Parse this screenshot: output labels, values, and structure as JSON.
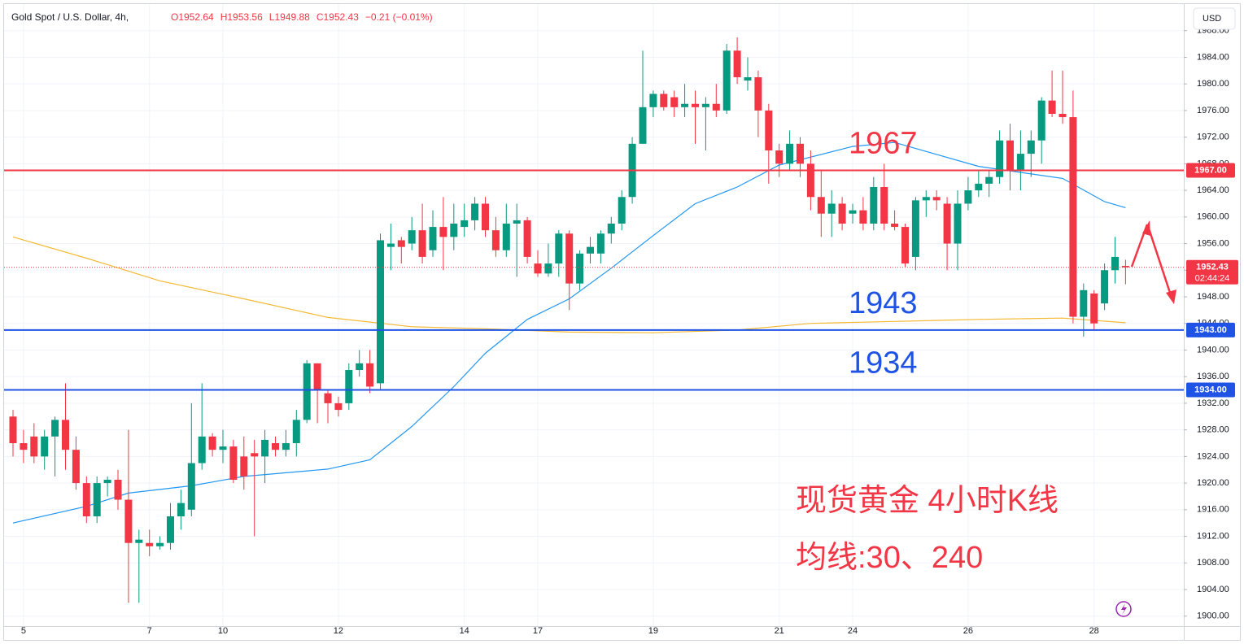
{
  "chart_data": {
    "type": "candlestick",
    "title": "Gold Spot / U.S. Dollar, 4h,",
    "ohlc_header": [
      "O1952.64",
      "H1953.56",
      "L1949.88",
      "C1952.43",
      "−0.21 (−0.01%)"
    ],
    "currency": "USD",
    "up_color": "#089981",
    "down_color": "#f23645",
    "categories": [
      null,
      "5",
      null,
      null,
      null,
      null,
      null,
      null,
      null,
      null,
      null,
      null,
      null,
      "7",
      null,
      null,
      null,
      null,
      null,
      null,
      "10",
      null,
      null,
      null,
      null,
      null,
      null,
      null,
      null,
      null,
      null,
      "12",
      null,
      null,
      null,
      null,
      null,
      null,
      null,
      null,
      null,
      null,
      null,
      "14",
      null,
      null,
      null,
      null,
      null,
      null,
      "17",
      null,
      null,
      null,
      null,
      null,
      null,
      null,
      null,
      null,
      null,
      "19",
      null,
      null,
      null,
      null,
      null,
      null,
      null,
      null,
      null,
      null,
      null,
      "21",
      null,
      null,
      null,
      null,
      null,
      null,
      "24",
      null,
      null,
      null,
      null,
      null,
      null,
      null,
      null,
      null,
      null,
      "26",
      null,
      null,
      null,
      null,
      null,
      null,
      null,
      null,
      null,
      null,
      null,
      "28",
      null,
      null,
      null
    ],
    "open": [
      1930,
      1926,
      1927,
      1924,
      1927,
      1929.5,
      1925,
      1920,
      1915,
      1920,
      1920.5,
      1917.5,
      1911,
      1911,
      1910.5,
      1911,
      1915,
      1916,
      1923,
      1927,
      1925,
      1925.5,
      1924,
      1924.5,
      1924,
      1926,
      1925,
      1926,
      1929.5,
      1938,
      1933.5,
      1932,
      1932,
      1937,
      1938,
      1935,
      1955.5,
      1956.5,
      1956,
      1958,
      1955,
      1958.5,
      1957,
      1958.5,
      1959.5,
      1962,
      1958,
      1955,
      1959,
      1959.5,
      1953,
      1951.5,
      1953,
      1957.5,
      1950,
      1954.5,
      1954.5,
      1957.5,
      1959,
      1963,
      1971,
      1976.5,
      1978.5,
      1978,
      1976.5,
      1977,
      1976.5,
      1977,
      1976,
      1985,
      1980.5,
      1981,
      1976,
      1970,
      1968,
      1971,
      1968,
      1963,
      1960.5,
      1962,
      1960.5,
      1961,
      1959,
      1964.5,
      1959,
      1958.5,
      1954,
      1962.5,
      1963,
      1962,
      1956,
      1962,
      1964,
      1965,
      1966,
      1971.5,
      1967,
      1969.5,
      1971.5,
      1977.5,
      1975.5,
      1975,
      1945,
      1948.5,
      1947,
      1952,
      1952.64
    ],
    "high": [
      1931,
      1928,
      1929,
      1928,
      1930,
      1935,
      1927,
      1921,
      1921,
      1921,
      1922,
      1928,
      1913,
      1913,
      1912,
      1917,
      1919,
      1932,
      1935,
      1927.5,
      1928,
      1926.5,
      1927,
      1926.5,
      1928,
      1927,
      1928,
      1931,
      1938.5,
      1938,
      1934,
      1933,
      1938,
      1940,
      1940,
      1957.5,
      1959,
      1957,
      1960,
      1962,
      1961,
      1963,
      1962,
      1962,
      1963,
      1963,
      1960,
      1962,
      1962,
      1960,
      1955,
      1956,
      1958,
      1958,
      1955,
      1957,
      1958,
      1960,
      1964,
      1972,
      1985,
      1979,
      1979,
      1979,
      1980,
      1979,
      1978,
      1980,
      1986,
      1987,
      1984,
      1982,
      1977,
      1971,
      1973,
      1972,
      1970,
      1967,
      1964,
      1963,
      1962,
      1963,
      1966,
      1968,
      1961,
      1959,
      1963,
      1964,
      1964,
      1963,
      1964,
      1966,
      1967,
      1967,
      1973,
      1974,
      1973,
      1973,
      1978,
      1982,
      1982,
      1979,
      1950,
      1949,
      1953,
      1957,
      1953.56
    ],
    "low": [
      1924,
      1923,
      1923,
      1922,
      1921,
      1922,
      1919,
      1914,
      1914,
      1918,
      1916,
      1902,
      1902,
      1909,
      1910,
      1910,
      1913,
      1915,
      1922,
      1924,
      1923,
      1920,
      1919,
      1912,
      1920,
      1924,
      1924,
      1924,
      1929,
      1929,
      1929,
      1930,
      1931,
      1936,
      1933.5,
      1934,
      1952,
      1953,
      1955,
      1953,
      1954,
      1952,
      1955,
      1957,
      1958,
      1957,
      1954,
      1954,
      1951,
      1953,
      1951,
      1951,
      1951,
      1946,
      1949,
      1953,
      1953,
      1956,
      1958,
      1962,
      1971,
      1975,
      1976,
      1975,
      1975,
      1971,
      1970,
      1975,
      1975.5,
      1980,
      1979,
      1972,
      1965,
      1966,
      1967,
      1966,
      1961,
      1957,
      1957,
      1958,
      1959,
      1958,
      1958,
      1958,
      1958,
      1952.5,
      1952,
      1960,
      1961,
      1952,
      1952,
      1961,
      1963,
      1963,
      1965,
      1964,
      1964,
      1966,
      1968,
      1975,
      1974,
      1944,
      1942,
      1943,
      1946,
      1950,
      1949.88
    ],
    "close": [
      1926,
      1925,
      1924,
      1927,
      1929.5,
      1925,
      1920,
      1915,
      1920,
      1920.5,
      1917.5,
      1911,
      1911.5,
      1910.5,
      1911,
      1915,
      1917,
      1923,
      1927,
      1925,
      1925.5,
      1920.5,
      1921,
      1924,
      1926.5,
      1925,
      1926,
      1929.5,
      1938,
      1934,
      1932,
      1931,
      1937,
      1938,
      1934.5,
      1956.5,
      1956,
      1955.5,
      1958,
      1954,
      1958.5,
      1957,
      1959,
      1959.5,
      1962,
      1958,
      1955,
      1959,
      1959.5,
      1954,
      1951.5,
      1953,
      1957.5,
      1950,
      1954.5,
      1955.5,
      1957.5,
      1959,
      1963,
      1971,
      1976.5,
      1978.5,
      1976.5,
      1976.5,
      1977,
      1976.5,
      1977,
      1976,
      1985,
      1981,
      1981,
      1976,
      1970,
      1968,
      1971,
      1968,
      1963,
      1960.5,
      1962,
      1959,
      1961,
      1959,
      1964.5,
      1959,
      1958.5,
      1953,
      1962.5,
      1963,
      1962.5,
      1956,
      1962,
      1964,
      1965,
      1966,
      1971.5,
      1967,
      1969.5,
      1971.5,
      1977.5,
      1975.5,
      1975,
      1945,
      1949,
      1944,
      1952,
      1954,
      1952.43
    ],
    "moving_averages": [
      {
        "color": "#2196f3",
        "x": [
          0,
          7,
          11,
          17,
          22,
          30,
          34,
          38,
          42,
          45,
          49,
          53,
          57,
          61,
          65,
          69,
          73,
          80,
          84,
          88,
          92,
          96,
          100,
          104,
          106
        ],
        "values": [
          1914,
          1916.5,
          1918.5,
          1919.6,
          1921,
          1922.1,
          1923.5,
          1928.5,
          1934.5,
          1939.5,
          1944.6,
          1947.7,
          1952.3,
          1957.2,
          1962,
          1964.5,
          1967.8,
          1970.6,
          1971.2,
          1969.4,
          1967.6,
          1966.7,
          1965.8,
          1962.3,
          1961.4
        ]
      },
      {
        "color": "#f5b935",
        "x": [
          0,
          7,
          14,
          22,
          30,
          38,
          45,
          53,
          61,
          69,
          76,
          84,
          92,
          100,
          106
        ],
        "values": [
          1957,
          1953.8,
          1950.4,
          1947.7,
          1944.9,
          1943.5,
          1943.2,
          1942.7,
          1942.6,
          1943,
          1944,
          1944.3,
          1944.6,
          1944.8,
          1944.1
        ]
      }
    ],
    "levels": [
      {
        "value": 1967,
        "label": "1967.00",
        "note": "1967",
        "color": "#f23645"
      },
      {
        "value": 1943,
        "label": "1943.00",
        "note": "1943",
        "color": "#1e53e5"
      },
      {
        "value": 1934,
        "label": "1934.00",
        "note": "1934",
        "color": "#1e53e5"
      }
    ],
    "last_price": {
      "value": 1952.43,
      "countdown": "02:44:24",
      "color": "#f23645"
    },
    "annotations": [
      "现货黄金 4小时K线",
      "均线:30、240"
    ],
    "ylim": [
      1898.5,
      1992
    ],
    "yticks": [
      {
        "value": 1900,
        "label": "1900.00"
      },
      {
        "value": 1904,
        "label": "1904.00"
      },
      {
        "value": 1908,
        "label": "1908.00"
      },
      {
        "value": 1912,
        "label": "1912.00"
      },
      {
        "value": 1916,
        "label": "1916.00"
      },
      {
        "value": 1920,
        "label": "1920.00"
      },
      {
        "value": 1924,
        "label": "1924.00"
      },
      {
        "value": 1928,
        "label": "1928.00"
      },
      {
        "value": 1932,
        "label": "1932.00"
      },
      {
        "value": 1936,
        "label": "1936.00"
      },
      {
        "value": 1940,
        "label": "1940.00"
      },
      {
        "value": 1944,
        "label": "1944.00"
      },
      {
        "value": 1948,
        "label": "1948.00"
      },
      {
        "value": 1952,
        "label": "1952.00"
      },
      {
        "value": 1956,
        "label": "1956.00"
      },
      {
        "value": 1960,
        "label": "1960.00"
      },
      {
        "value": 1964,
        "label": "1964.00"
      },
      {
        "value": 1968,
        "label": "1968.00"
      },
      {
        "value": 1972,
        "label": "1972.00"
      },
      {
        "value": 1976,
        "label": "1976.00"
      },
      {
        "value": 1980,
        "label": "1980.00"
      },
      {
        "value": 1984,
        "label": "1984.00"
      },
      {
        "value": 1988,
        "label": "1988.00"
      }
    ],
    "grid": true
  }
}
